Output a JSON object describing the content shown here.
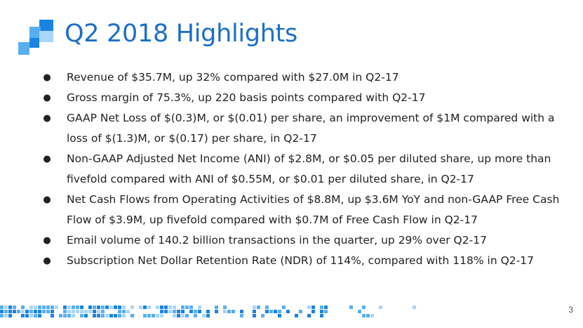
{
  "slide": {
    "title": "Q2 2018 Highlights",
    "page_number": "3",
    "bullets": [
      "Revenue of $35.7M, up 32% compared with $27.0M in Q2-17",
      "Gross margin of 75.3%, up 220 basis points compared with Q2-17",
      "GAAP Net Loss of $(0.3)M, or $(0.01) per share, an improvement of $1M compared with a loss of $(1.3)M, or $(0.17) per share, in Q2-17",
      "Non-GAAP Adjusted Net Income (ANI) of $2.8M, or $0.05 per diluted share, up more than fivefold compared with ANI of $0.55M, or $0.01 per diluted share, in Q2-17",
      "Net Cash Flows from Operating Activities of $8.8M, up $3.6M YoY and non-GAAP Free Cash Flow of $3.9M, up fivefold compared with $0.7M of Free Cash Flow in Q2-17",
      "Email volume of 140.2 billion transactions in the quarter, up 29% over Q2-17",
      "Subscription Net Dollar Retention Rate (NDR) of 114%, compared with 118% in Q2-17"
    ],
    "colors": {
      "accent": "#1b6fc6",
      "pixel_dark": "#1a82e2",
      "pixel_mid": "#58aff0",
      "pixel_light": "#a9d6f8"
    },
    "icons": {
      "logo": "pixel-square-logo",
      "bullet": "bullet-dot-icon"
    }
  }
}
